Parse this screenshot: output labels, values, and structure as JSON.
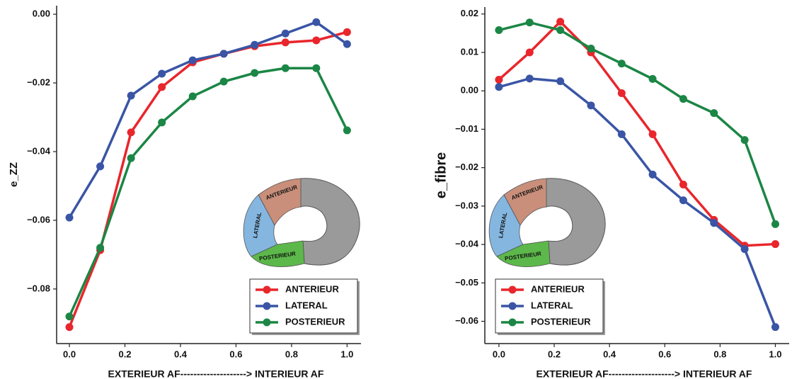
{
  "chart_data": [
    {
      "type": "line",
      "ylabel": "e_ZZ",
      "xlabel": "EXTERIEUR AF-------------------->  INTERIEUR AF",
      "x": [
        0,
        0.111,
        0.222,
        0.333,
        0.444,
        0.556,
        0.667,
        0.778,
        0.889,
        1
      ],
      "xlim": [
        -0.046,
        1.05
      ],
      "ylim": [
        -0.0959,
        0.0025
      ],
      "xticks": [
        {
          "value": 0,
          "label": "0.0"
        },
        {
          "value": 0.2,
          "label": "0.2"
        },
        {
          "value": 0.4,
          "label": "0.4"
        },
        {
          "value": 0.6,
          "label": "0.6"
        },
        {
          "value": 0.8,
          "label": "0.8"
        },
        {
          "value": 1,
          "label": "1.0"
        }
      ],
      "yticks": [
        {
          "value": 0,
          "label": "0.00"
        },
        {
          "value": -0.02,
          "label": "−0.02"
        },
        {
          "value": -0.04,
          "label": "−0.04"
        },
        {
          "value": -0.06,
          "label": "−0.06"
        },
        {
          "value": -0.08,
          "label": "−0.08"
        }
      ],
      "legend": "lower right",
      "annotations": [
        "ANTERIEUR",
        "LATERAL",
        "POSTERIEUR"
      ],
      "series": [
        {
          "name": "ANTERIEUR",
          "color": "#e8262c",
          "values": [
            -0.0911,
            -0.0687,
            -0.0344,
            -0.0212,
            -0.014,
            -0.0115,
            -0.0093,
            -0.0082,
            -0.0076,
            -0.0052
          ]
        },
        {
          "name": "LATERAL",
          "color": "#3a55a5",
          "values": [
            -0.0592,
            -0.0443,
            -0.0237,
            -0.0173,
            -0.0134,
            -0.0115,
            -0.0089,
            -0.0056,
            -0.0023,
            -0.0087
          ]
        },
        {
          "name": "POSTERIEUR",
          "color": "#1b8645",
          "values": [
            -0.088,
            -0.068,
            -0.0419,
            -0.0315,
            -0.0239,
            -0.0196,
            -0.0171,
            -0.0157,
            -0.0157,
            -0.0338
          ]
        }
      ]
    },
    {
      "type": "line",
      "ylabel": "e_fibre",
      "xlabel": "EXTERIEUR AF-------------------->  INTERIEUR AF",
      "x": [
        0,
        0.111,
        0.222,
        0.333,
        0.444,
        0.556,
        0.667,
        0.778,
        0.889,
        1
      ],
      "xlim": [
        -0.051,
        1.05
      ],
      "ylim": [
        -0.0658,
        0.0218
      ],
      "xticks": [
        {
          "value": 0,
          "label": "0.0"
        },
        {
          "value": 0.2,
          "label": "0.2"
        },
        {
          "value": 0.4,
          "label": "0.4"
        },
        {
          "value": 0.6,
          "label": "0.6"
        },
        {
          "value": 0.8,
          "label": "0.8"
        },
        {
          "value": 1,
          "label": "1.0"
        }
      ],
      "yticks": [
        {
          "value": 0.02,
          "label": "0.02"
        },
        {
          "value": 0.01,
          "label": "0.01"
        },
        {
          "value": 0,
          "label": "0.00"
        },
        {
          "value": -0.01,
          "label": "−0.01"
        },
        {
          "value": -0.02,
          "label": "−0.02"
        },
        {
          "value": -0.03,
          "label": "−0.03"
        },
        {
          "value": -0.04,
          "label": "−0.04"
        },
        {
          "value": -0.05,
          "label": "−0.05"
        },
        {
          "value": -0.06,
          "label": "−0.06"
        }
      ],
      "legend": "lower left",
      "annotations": [
        "ANTERIEUR",
        "LATERAL",
        "POSTERIEUR"
      ],
      "series": [
        {
          "name": "ANTERIEUR",
          "color": "#e8262c",
          "values": [
            0.0029,
            0.01,
            0.018,
            0.01,
            -0.0006,
            -0.0113,
            -0.0244,
            -0.0336,
            -0.0403,
            -0.0399
          ]
        },
        {
          "name": "LATERAL",
          "color": "#3a55a5",
          "values": [
            0.001,
            0.0032,
            0.0025,
            -0.0038,
            -0.0113,
            -0.0218,
            -0.0285,
            -0.0344,
            -0.0412,
            -0.0615
          ]
        },
        {
          "name": "POSTERIEUR",
          "color": "#1b8645",
          "values": [
            0.0158,
            0.0178,
            0.0158,
            0.011,
            0.0071,
            0.0031,
            -0.0021,
            -0.0058,
            -0.0128,
            -0.0347
          ]
        }
      ]
    }
  ]
}
